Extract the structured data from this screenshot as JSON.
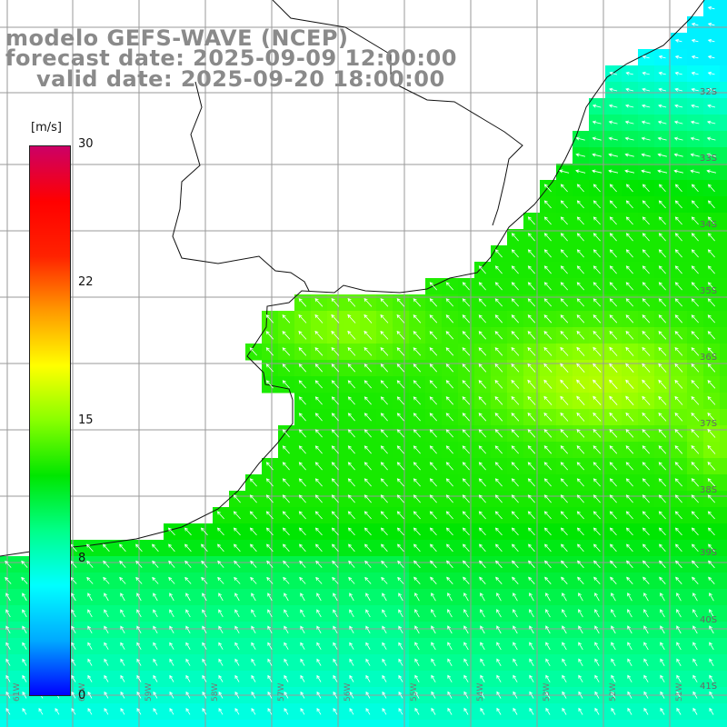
{
  "title": {
    "model": "modelo GEFS-WAVE (NCEP)",
    "forecast": "forecast date: 2025-09-09 12:00:00",
    "valid": "valid date: 2025-09-20 18:00:00"
  },
  "colorbar": {
    "unit": "[m/s]",
    "ticks": [
      "30",
      "22",
      "15",
      "8",
      "0"
    ],
    "range": [
      0,
      30
    ],
    "colors": [
      "#0000ff",
      "#00aaff",
      "#00ffff",
      "#00ff88",
      "#00e600",
      "#88ff00",
      "#ffff00",
      "#ff9900",
      "#ff2200",
      "#ff0000",
      "#cc0066"
    ]
  },
  "lat_labels": [
    "32S",
    "33S",
    "34S",
    "35S",
    "36S",
    "37S",
    "38S",
    "39S",
    "40S",
    "41S"
  ],
  "lon_labels": [
    "61W",
    "60W",
    "59W",
    "58W",
    "57W",
    "56W",
    "55W",
    "54W",
    "53W",
    "52W",
    "51W"
  ],
  "field": {
    "variable": "wind speed",
    "unit": "m/s",
    "approx_range": [
      6,
      17
    ],
    "wind_from": "southeast"
  }
}
